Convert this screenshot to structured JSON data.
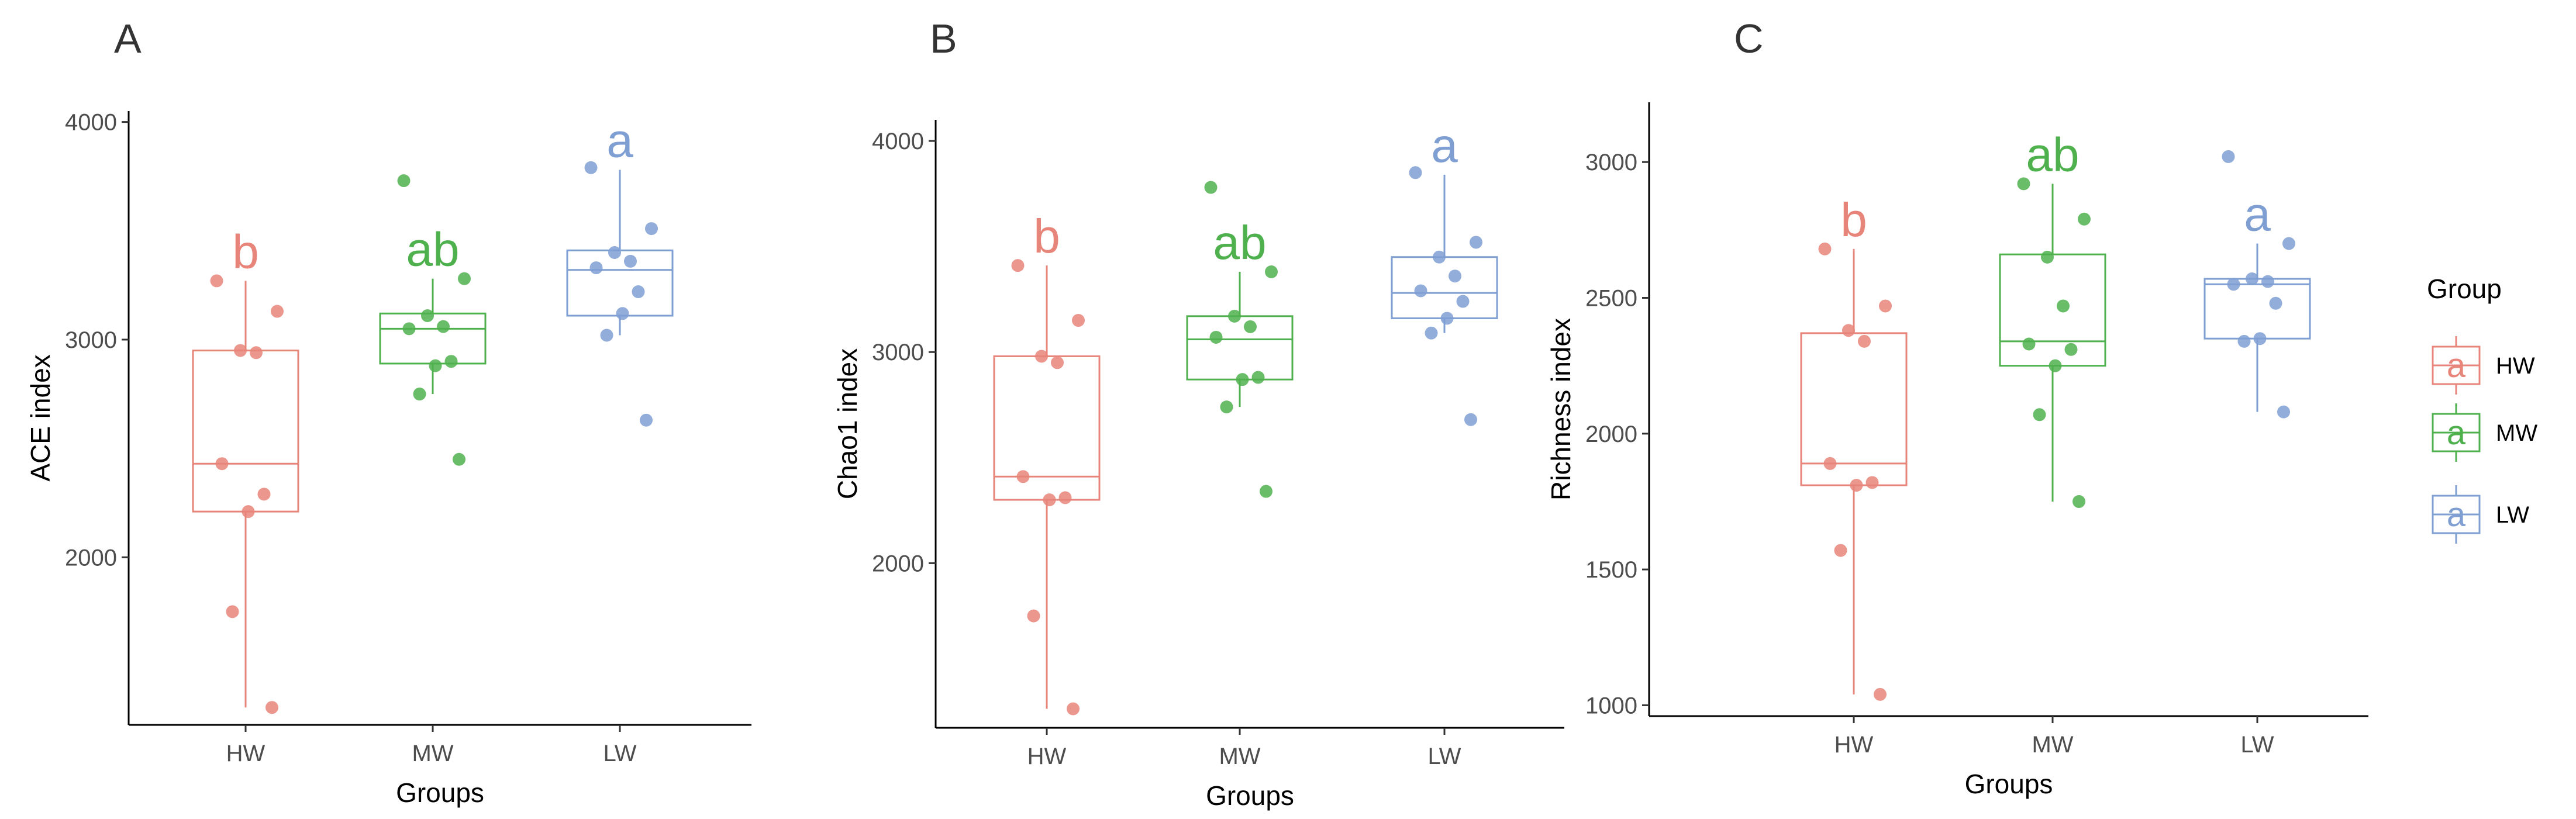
{
  "colors": {
    "HW": "#e8857a",
    "MW": "#4fb14d",
    "LW": "#7f9fd3"
  },
  "legend": {
    "title": "Group",
    "entries": [
      {
        "group": "HW",
        "label": "HW",
        "key": "a"
      },
      {
        "group": "MW",
        "label": "MW",
        "key": "a"
      },
      {
        "group": "LW",
        "label": "LW",
        "key": "a"
      }
    ]
  },
  "chart_data": [
    {
      "type": "box",
      "panel": "A",
      "ylabel": "ACE index",
      "xlabel": "Groups",
      "categories": [
        "HW",
        "MW",
        "LW"
      ],
      "yticks": [
        2000,
        3000,
        4000
      ],
      "ylim": [
        1230,
        4050
      ],
      "boxes": [
        {
          "group": "HW",
          "sig": "b",
          "q1": 2210,
          "median": 2430,
          "q3": 2950,
          "whisker_low": 1310,
          "whisker_high": 3270,
          "points": [
            3270,
            3130,
            2950,
            2940,
            2430,
            2290,
            2210,
            1750,
            1310
          ]
        },
        {
          "group": "MW",
          "sig": "ab",
          "q1": 2890,
          "median": 3050,
          "q3": 3120,
          "whisker_low": 2750,
          "whisker_high": 3280,
          "points": [
            3730,
            3280,
            3110,
            3060,
            3050,
            2900,
            2880,
            2750,
            2450
          ]
        },
        {
          "group": "LW",
          "sig": "a",
          "q1": 3110,
          "median": 3320,
          "q3": 3410,
          "whisker_low": 3020,
          "whisker_high": 3780,
          "points": [
            3790,
            3510,
            3400,
            3360,
            3330,
            3220,
            3120,
            3020,
            2630
          ]
        }
      ]
    },
    {
      "type": "box",
      "panel": "B",
      "ylabel": "Chao1 index",
      "xlabel": "Groups",
      "categories": [
        "HW",
        "MW",
        "LW"
      ],
      "yticks": [
        2000,
        3000,
        4000
      ],
      "ylim": [
        1220,
        4100
      ],
      "boxes": [
        {
          "group": "HW",
          "sig": "b",
          "q1": 2300,
          "median": 2410,
          "q3": 2980,
          "whisker_low": 1310,
          "whisker_high": 3410,
          "points": [
            3410,
            3150,
            2980,
            2950,
            2410,
            2310,
            2300,
            1750,
            1310
          ]
        },
        {
          "group": "MW",
          "sig": "ab",
          "q1": 2870,
          "median": 3060,
          "q3": 3170,
          "whisker_low": 2740,
          "whisker_high": 3380,
          "points": [
            3780,
            3380,
            3170,
            3120,
            3070,
            2880,
            2870,
            2740,
            2340
          ]
        },
        {
          "group": "LW",
          "sig": "a",
          "q1": 3160,
          "median": 3280,
          "q3": 3450,
          "whisker_low": 3090,
          "whisker_high": 3840,
          "points": [
            3850,
            3520,
            3450,
            3360,
            3290,
            3240,
            3160,
            3090,
            2680
          ]
        }
      ]
    },
    {
      "type": "box",
      "panel": "C",
      "ylabel": "Richness index",
      "xlabel": "Groups",
      "categories": [
        "HW",
        "MW",
        "LW"
      ],
      "yticks": [
        1000,
        1500,
        2000,
        2500,
        3000
      ],
      "ylim": [
        960,
        3220
      ],
      "boxes": [
        {
          "group": "HW",
          "sig": "b",
          "q1": 1810,
          "median": 1890,
          "q3": 2370,
          "whisker_low": 1040,
          "whisker_high": 2680,
          "points": [
            2680,
            2470,
            2380,
            2340,
            1890,
            1820,
            1810,
            1570,
            1040
          ]
        },
        {
          "group": "MW",
          "sig": "ab",
          "q1": 2250,
          "median": 2340,
          "q3": 2660,
          "whisker_low": 1750,
          "whisker_high": 2920,
          "points": [
            2920,
            2790,
            2650,
            2470,
            2330,
            2310,
            2250,
            2070,
            1750
          ]
        },
        {
          "group": "LW",
          "sig": "a",
          "q1": 2350,
          "median": 2550,
          "q3": 2570,
          "whisker_low": 2080,
          "whisker_high": 2700,
          "points": [
            3020,
            2700,
            2570,
            2560,
            2550,
            2480,
            2350,
            2340,
            2080
          ]
        }
      ]
    }
  ]
}
